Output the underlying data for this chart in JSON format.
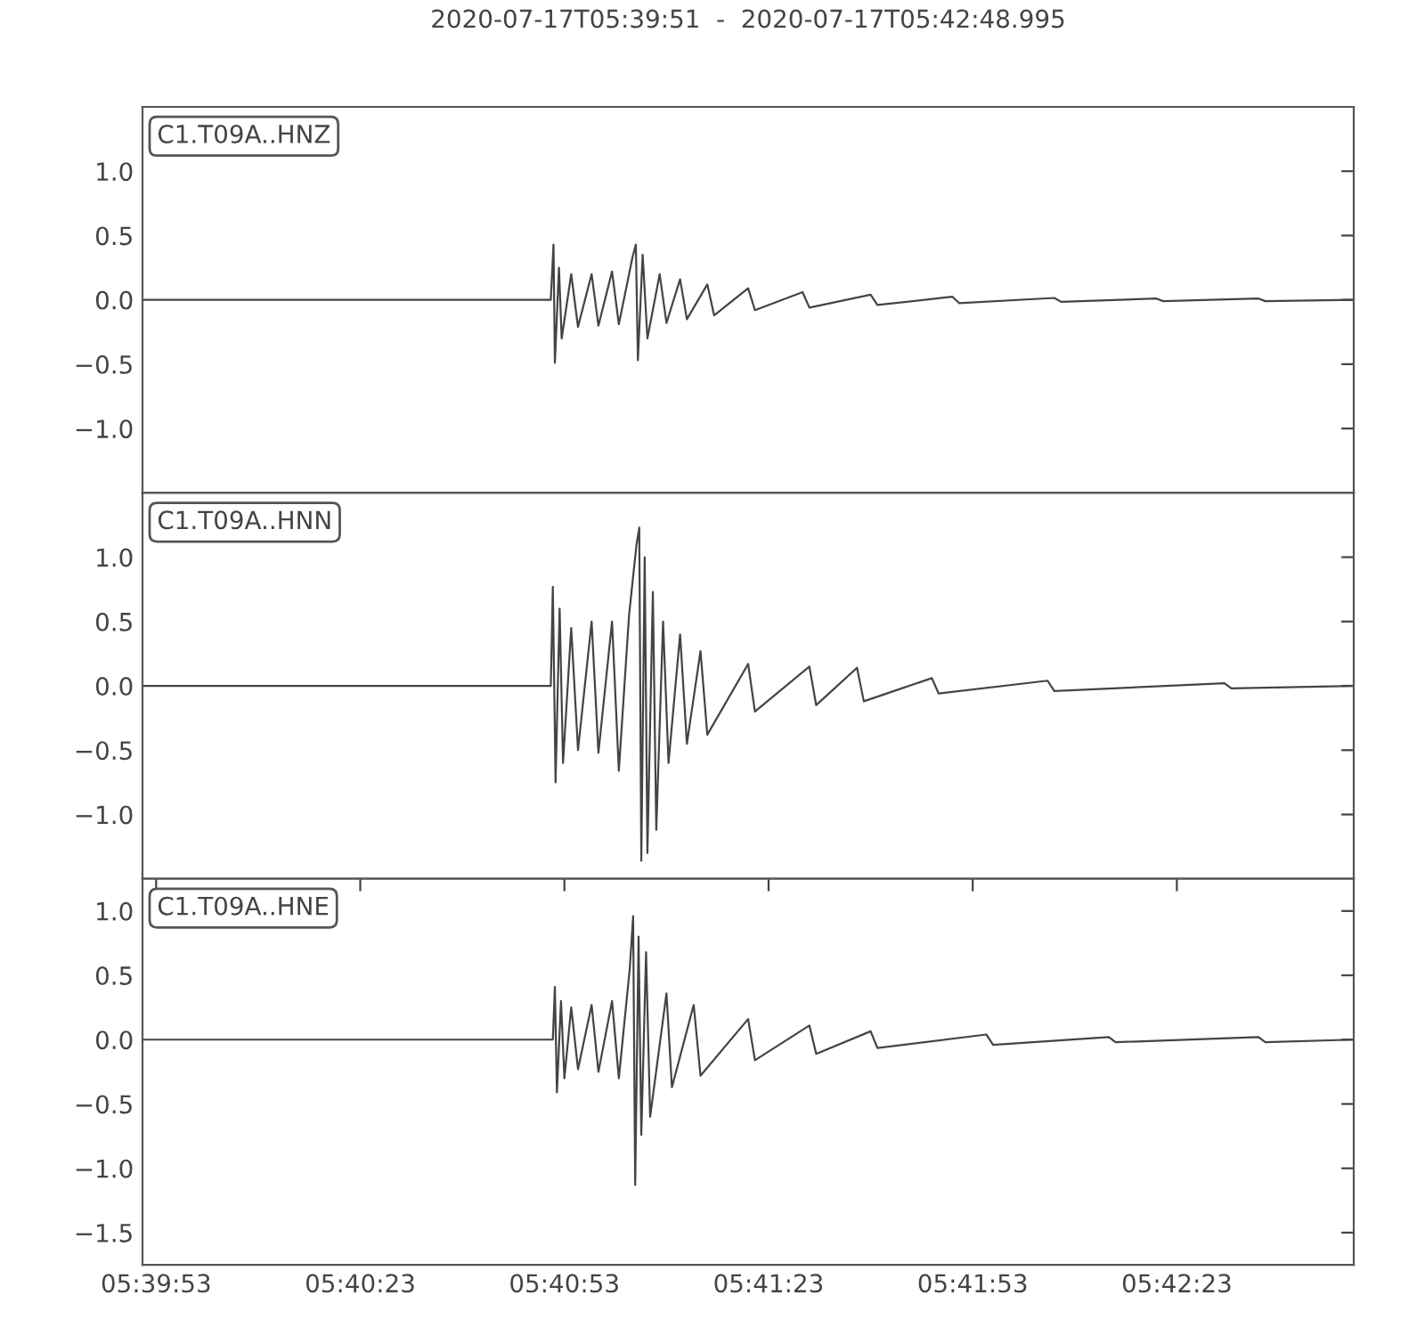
{
  "chart_data": [
    {
      "type": "line",
      "title": "2020-07-17T05:39:51  -  2020-07-17T05:42:48.995",
      "annotations": [
        "C1.T09A..HNZ"
      ],
      "tick_labels": "y",
      "xlim": [
        "2020-07-17T05:39:51",
        "2020-07-17T05:42:48.995"
      ],
      "ylim": [
        -1.5,
        1.5
      ],
      "yticks": [
        {
          "value": 1.0,
          "label": "1.0"
        },
        {
          "value": 0.5,
          "label": "0.5"
        },
        {
          "value": 0.0,
          "label": "0.0"
        },
        {
          "value": -0.5,
          "label": "−0.5"
        },
        {
          "value": -1.0,
          "label": "−1.0"
        }
      ],
      "series": [
        {
          "color": "#444444",
          "x": [
            "2020-07-17T05:39:51",
            "2020-07-17T05:40:51.0",
            "2020-07-17T05:40:51.4",
            "2020-07-17T05:40:51.6",
            "2020-07-17T05:40:52.2",
            "2020-07-17T05:40:52.6",
            "2020-07-17T05:40:54",
            "2020-07-17T05:40:55",
            "2020-07-17T05:40:57",
            "2020-07-17T05:40:58",
            "2020-07-17T05:41:00",
            "2020-07-17T05:41:01",
            "2020-07-17T05:41:03.0",
            "2020-07-17T05:41:03.5",
            "2020-07-17T05:41:03.8",
            "2020-07-17T05:41:04.5",
            "2020-07-17T05:41:05.2",
            "2020-07-17T05:41:07",
            "2020-07-17T05:41:08",
            "2020-07-17T05:41:10",
            "2020-07-17T05:41:11",
            "2020-07-17T05:41:14",
            "2020-07-17T05:41:15",
            "2020-07-17T05:41:20",
            "2020-07-17T05:41:21",
            "2020-07-17T05:41:28",
            "2020-07-17T05:41:29",
            "2020-07-17T05:41:38",
            "2020-07-17T05:41:39",
            "2020-07-17T05:41:50",
            "2020-07-17T05:41:51",
            "2020-07-17T05:42:05",
            "2020-07-17T05:42:06",
            "2020-07-17T05:42:20",
            "2020-07-17T05:42:21",
            "2020-07-17T05:42:35",
            "2020-07-17T05:42:36",
            "2020-07-17T05:42:48.9"
          ],
          "values": [
            0,
            0,
            0.43,
            -0.49,
            0.25,
            -0.3,
            0.2,
            -0.21,
            0.2,
            -0.2,
            0.22,
            -0.19,
            0.33,
            0.43,
            -0.47,
            0.35,
            -0.3,
            0.2,
            -0.18,
            0.16,
            -0.15,
            0.12,
            -0.12,
            0.09,
            -0.08,
            0.06,
            -0.06,
            0.04,
            -0.04,
            0.025,
            -0.025,
            0.015,
            -0.015,
            0.01,
            -0.01,
            0.01,
            -0.01,
            0
          ]
        }
      ]
    },
    {
      "type": "line",
      "annotations": [
        "C1.T09A..HNN"
      ],
      "tick_labels": "y",
      "xlim": [
        "2020-07-17T05:39:51",
        "2020-07-17T05:42:48.995"
      ],
      "ylim": [
        -1.5,
        1.5
      ],
      "yticks": [
        {
          "value": 1.0,
          "label": "1.0"
        },
        {
          "value": 0.5,
          "label": "0.5"
        },
        {
          "value": 0.0,
          "label": "0.0"
        },
        {
          "value": -0.5,
          "label": "−0.5"
        },
        {
          "value": -1.0,
          "label": "−1.0"
        }
      ],
      "series": [
        {
          "color": "#444444",
          "x": [
            "2020-07-17T05:39:51",
            "2020-07-17T05:40:51.0",
            "2020-07-17T05:40:51.3",
            "2020-07-17T05:40:51.7",
            "2020-07-17T05:40:52.3",
            "2020-07-17T05:40:52.8",
            "2020-07-17T05:40:54",
            "2020-07-17T05:40:55",
            "2020-07-17T05:40:57",
            "2020-07-17T05:40:58",
            "2020-07-17T05:41:00",
            "2020-07-17T05:41:01",
            "2020-07-17T05:41:02.5",
            "2020-07-17T05:41:03.6",
            "2020-07-17T05:41:04.0",
            "2020-07-17T05:41:04.3",
            "2020-07-17T05:41:04.8",
            "2020-07-17T05:41:05.2",
            "2020-07-17T05:41:06",
            "2020-07-17T05:41:06.5",
            "2020-07-17T05:41:07.5",
            "2020-07-17T05:41:08.3",
            "2020-07-17T05:41:10",
            "2020-07-17T05:41:11",
            "2020-07-17T05:41:13",
            "2020-07-17T05:41:14",
            "2020-07-17T05:41:20",
            "2020-07-17T05:41:21",
            "2020-07-17T05:41:29",
            "2020-07-17T05:41:30",
            "2020-07-17T05:41:36",
            "2020-07-17T05:41:37",
            "2020-07-17T05:41:47",
            "2020-07-17T05:41:48",
            "2020-07-17T05:42:04",
            "2020-07-17T05:42:05",
            "2020-07-17T05:42:30",
            "2020-07-17T05:42:31",
            "2020-07-17T05:42:48.9"
          ],
          "values": [
            0,
            0,
            0.77,
            -0.75,
            0.6,
            -0.6,
            0.45,
            -0.5,
            0.5,
            -0.52,
            0.5,
            -0.66,
            0.55,
            1.1,
            1.23,
            -1.36,
            1.0,
            -1.3,
            0.73,
            -1.12,
            0.5,
            -0.6,
            0.4,
            -0.45,
            0.27,
            -0.38,
            0.17,
            -0.2,
            0.15,
            -0.15,
            0.14,
            -0.12,
            0.06,
            -0.06,
            0.04,
            -0.04,
            0.02,
            -0.02,
            0
          ]
        }
      ]
    },
    {
      "type": "line",
      "annotations": [
        "C1.T09A..HNE"
      ],
      "xlim": [
        "2020-07-17T05:39:51",
        "2020-07-17T05:42:48.995"
      ],
      "xticks": [
        {
          "value": "2020-07-17T05:39:53",
          "label": "05:39:53"
        },
        {
          "value": "2020-07-17T05:40:23",
          "label": "05:40:23"
        },
        {
          "value": "2020-07-17T05:40:53",
          "label": "05:40:53"
        },
        {
          "value": "2020-07-17T05:41:23",
          "label": "05:41:23"
        },
        {
          "value": "2020-07-17T05:41:53",
          "label": "05:41:53"
        },
        {
          "value": "2020-07-17T05:42:23",
          "label": "05:42:23"
        }
      ],
      "ylim": [
        -1.75,
        1.25
      ],
      "yticks": [
        {
          "value": 1.0,
          "label": "1.0"
        },
        {
          "value": 0.5,
          "label": "0.5"
        },
        {
          "value": 0.0,
          "label": "0.0"
        },
        {
          "value": -0.5,
          "label": "−0.5"
        },
        {
          "value": -1.0,
          "label": "−1.0"
        },
        {
          "value": -1.5,
          "label": "−1.5"
        }
      ],
      "series": [
        {
          "color": "#444444",
          "x": [
            "2020-07-17T05:39:51",
            "2020-07-17T05:40:51.3",
            "2020-07-17T05:40:51.6",
            "2020-07-17T05:40:51.9",
            "2020-07-17T05:40:52.5",
            "2020-07-17T05:40:53",
            "2020-07-17T05:40:54",
            "2020-07-17T05:40:55",
            "2020-07-17T05:40:57",
            "2020-07-17T05:40:58",
            "2020-07-17T05:41:00",
            "2020-07-17T05:41:01",
            "2020-07-17T05:41:02.6",
            "2020-07-17T05:41:03.1",
            "2020-07-17T05:41:03.4",
            "2020-07-17T05:41:03.9",
            "2020-07-17T05:41:04.3",
            "2020-07-17T05:41:05",
            "2020-07-17T05:41:05.6",
            "2020-07-17T05:41:08",
            "2020-07-17T05:41:08.8",
            "2020-07-17T05:41:12",
            "2020-07-17T05:41:13",
            "2020-07-17T05:41:20",
            "2020-07-17T05:41:21",
            "2020-07-17T05:41:29",
            "2020-07-17T05:41:30",
            "2020-07-17T05:41:38",
            "2020-07-17T05:41:39",
            "2020-07-17T05:41:55",
            "2020-07-17T05:41:56",
            "2020-07-17T05:42:13",
            "2020-07-17T05:42:14",
            "2020-07-17T05:42:35",
            "2020-07-17T05:42:36",
            "2020-07-17T05:42:48.9"
          ],
          "values": [
            0,
            0,
            0.41,
            -0.41,
            0.3,
            -0.3,
            0.25,
            -0.23,
            0.27,
            -0.25,
            0.3,
            -0.3,
            0.55,
            0.96,
            -1.13,
            0.8,
            -0.74,
            0.68,
            -0.6,
            0.36,
            -0.37,
            0.27,
            -0.28,
            0.16,
            -0.16,
            0.11,
            -0.11,
            0.065,
            -0.065,
            0.04,
            -0.04,
            0.02,
            -0.02,
            0.02,
            -0.02,
            0
          ]
        }
      ]
    }
  ]
}
